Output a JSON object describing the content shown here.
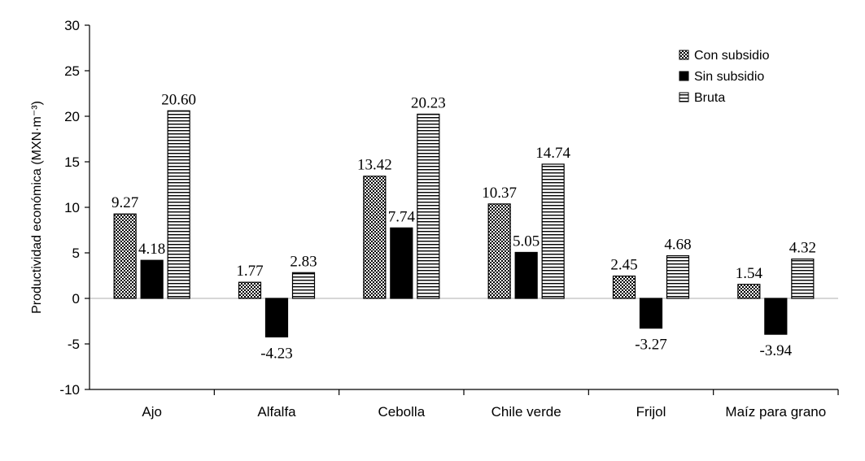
{
  "chart_data": {
    "type": "bar",
    "title": "",
    "xlabel": "",
    "ylabel": "Productividad económica (MXN·m⁻³)",
    "ylim": [
      -10,
      30
    ],
    "yticks": [
      -10,
      -5,
      0,
      5,
      10,
      15,
      20,
      25,
      30
    ],
    "grid": false,
    "legend_position": "top-right",
    "categories": [
      "Ajo",
      "Alfalfa",
      "Cebolla",
      "Chile verde",
      "Frijol",
      "Maíz para grano"
    ],
    "series": [
      {
        "name": "Con subsidio",
        "pattern": "checker",
        "values": [
          9.27,
          1.77,
          13.42,
          10.37,
          2.45,
          1.54
        ],
        "labels": [
          "9.27",
          "1.77",
          "13.42",
          "10.37",
          "2.45",
          "1.54"
        ]
      },
      {
        "name": "Sin subsidio",
        "pattern": "solid",
        "values": [
          4.18,
          -4.23,
          7.74,
          5.05,
          -3.27,
          -3.94
        ],
        "labels": [
          "4.18",
          "-4.23",
          "7.74",
          "5.05",
          "-3.27",
          "-3.94"
        ]
      },
      {
        "name": "Bruta",
        "pattern": "horizontal-stripes",
        "values": [
          20.6,
          2.83,
          20.23,
          14.74,
          4.68,
          4.32
        ],
        "labels": [
          "20.60",
          "2.83",
          "20.23",
          "14.74",
          "4.68",
          "4.32"
        ]
      }
    ],
    "colors": {
      "bar": "#000000",
      "axis": "#000000",
      "zero_line": "#bfbfbf"
    }
  }
}
